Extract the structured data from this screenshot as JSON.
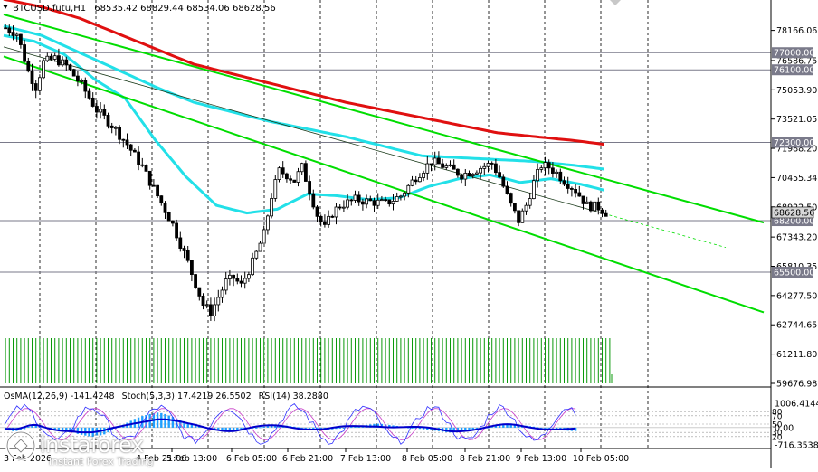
{
  "header": {
    "symbol": "BTCUSD.futu,H1",
    "ohlc": "68535.42 68829.44 68534.06 68628.56"
  },
  "osc_header": {
    "osma": "OsMA(12,26,9) -141.4248",
    "stoch": "Stoch(5,3,3) 17.4219 26.5502",
    "rsi": "RSI(14) 38.2880"
  },
  "colors": {
    "candle": "#000000",
    "ma_red": "#e01010",
    "ma_cyan": "#22e0e8",
    "channel": "#00dd00",
    "volume": "#0a9a0a",
    "level_line": "#7a7a8a",
    "osma_bar": "#1ea0ff",
    "macd_line": "#0000cc",
    "stoch_main": "#3030ff",
    "stoch_signal": "#c83cc8",
    "grid": "#2b2b2b"
  },
  "watermark": {
    "name": "instaforex",
    "tagline": "Instant Forex Trading"
  },
  "chart_data": {
    "type": "candlestick",
    "title": "BTCUSD.futu,H1",
    "timeframe": "H1",
    "ylim": [
      59676.98,
      79000
    ],
    "x_labels": [
      "5 Feb 13:00",
      "6 Feb 05:00",
      "6 Feb 21:00",
      "7 Feb 13:00",
      "8 Feb 05:00",
      "8 Feb 21:00",
      "9 Feb 13:00",
      "10 Feb 05:00"
    ],
    "x_labels_partial": [
      "3 Feb 2026",
      "4 Feb 21:00"
    ],
    "y_ticks": [
      "78166.06",
      "76586.75",
      "75053.90",
      "73521.05",
      "71988.20",
      "70455.34",
      "68922.50",
      "67343.20",
      "65810.35",
      "64277.50",
      "62744.65",
      "61211.80",
      "59676.98"
    ],
    "levels": [
      {
        "label": "77000.00",
        "value": 77000
      },
      {
        "label": "76100.00",
        "value": 76100
      },
      {
        "label": "72300.00",
        "value": 72300
      },
      {
        "label": "68200.00",
        "value": 68200
      },
      {
        "label": "65500.00",
        "value": 65500
      }
    ],
    "current_price": {
      "label": "68628.56",
      "value": 68628.56
    },
    "price_path": [
      [
        0,
        78300
      ],
      [
        3,
        78000
      ],
      [
        6,
        76000
      ],
      [
        8,
        75200
      ],
      [
        10,
        76500
      ],
      [
        13,
        76700
      ],
      [
        16,
        76300
      ],
      [
        20,
        75300
      ],
      [
        24,
        74000
      ],
      [
        28,
        73200
      ],
      [
        32,
        72200
      ],
      [
        36,
        71000
      ],
      [
        40,
        69500
      ],
      [
        44,
        68000
      ],
      [
        48,
        66000
      ],
      [
        52,
        63800
      ],
      [
        54,
        63400
      ],
      [
        56,
        64200
      ],
      [
        58,
        65000
      ],
      [
        60,
        65200
      ],
      [
        62,
        64800
      ],
      [
        65,
        66000
      ],
      [
        68,
        67500
      ],
      [
        70,
        69500
      ],
      [
        72,
        70800
      ],
      [
        74,
        70600
      ],
      [
        76,
        70300
      ],
      [
        78,
        71000
      ],
      [
        80,
        69800
      ],
      [
        82,
        68500
      ],
      [
        84,
        67800
      ],
      [
        86,
        68600
      ],
      [
        88,
        69000
      ],
      [
        92,
        69300
      ],
      [
        96,
        69200
      ],
      [
        100,
        69100
      ],
      [
        104,
        69500
      ],
      [
        108,
        70500
      ],
      [
        112,
        71300
      ],
      [
        116,
        71000
      ],
      [
        120,
        70600
      ],
      [
        124,
        70900
      ],
      [
        128,
        71200
      ],
      [
        130,
        70500
      ],
      [
        133,
        69000
      ],
      [
        135,
        68200
      ],
      [
        137,
        69000
      ],
      [
        139,
        70200
      ],
      [
        141,
        71100
      ],
      [
        143,
        71000
      ],
      [
        145,
        70700
      ],
      [
        147,
        70300
      ],
      [
        150,
        69800
      ],
      [
        153,
        69000
      ],
      [
        156,
        68900
      ],
      [
        158,
        68628.56
      ]
    ],
    "ma_red_path": [
      [
        0,
        79800
      ],
      [
        10,
        79400
      ],
      [
        20,
        78800
      ],
      [
        30,
        78000
      ],
      [
        40,
        77200
      ],
      [
        50,
        76400
      ],
      [
        60,
        75900
      ],
      [
        70,
        75400
      ],
      [
        80,
        74900
      ],
      [
        90,
        74400
      ],
      [
        100,
        74000
      ],
      [
        110,
        73600
      ],
      [
        120,
        73200
      ],
      [
        130,
        72800
      ],
      [
        140,
        72600
      ],
      [
        150,
        72400
      ],
      [
        158,
        72200
      ]
    ],
    "ma_cyan_slow_path": [
      [
        0,
        78400
      ],
      [
        10,
        77900
      ],
      [
        20,
        77000
      ],
      [
        30,
        76100
      ],
      [
        40,
        75200
      ],
      [
        50,
        74400
      ],
      [
        60,
        73900
      ],
      [
        70,
        73400
      ],
      [
        80,
        73000
      ],
      [
        90,
        72600
      ],
      [
        100,
        72100
      ],
      [
        110,
        71600
      ],
      [
        120,
        71500
      ],
      [
        130,
        71400
      ],
      [
        140,
        71300
      ],
      [
        150,
        71100
      ],
      [
        158,
        70900
      ]
    ],
    "ma_cyan_fast_path": [
      [
        0,
        77900
      ],
      [
        8,
        77600
      ],
      [
        16,
        76900
      ],
      [
        24,
        75600
      ],
      [
        32,
        74600
      ],
      [
        40,
        72400
      ],
      [
        48,
        70500
      ],
      [
        56,
        69000
      ],
      [
        64,
        68600
      ],
      [
        72,
        68800
      ],
      [
        80,
        69600
      ],
      [
        88,
        69500
      ],
      [
        96,
        69300
      ],
      [
        104,
        69400
      ],
      [
        112,
        70000
      ],
      [
        120,
        70400
      ],
      [
        128,
        70600
      ],
      [
        136,
        70200
      ],
      [
        144,
        70400
      ],
      [
        152,
        70100
      ],
      [
        158,
        69800
      ]
    ],
    "channel_lines": [
      {
        "from": [
          0,
          79000
        ],
        "to": [
          200,
          68100
        ]
      },
      {
        "from": [
          0,
          76800
        ],
        "to": [
          200,
          63400
        ]
      }
    ],
    "regression_line": {
      "from": [
        0,
        77300
      ],
      "to": [
        190,
        66800
      ]
    },
    "volume_bars": 160,
    "osc_ylim": [
      -716.3538,
      1006.4144
    ],
    "osc_ticks": [
      "1006.4144",
      "0.00",
      "-716.3538"
    ],
    "osc_level_labels": [
      "80",
      "70",
      "50",
      "30",
      "20"
    ],
    "osma_values": [
      -80,
      -120,
      -150,
      -180,
      -120,
      -60,
      40,
      90,
      120,
      80,
      30,
      -20,
      -60,
      -90,
      -110,
      -130,
      -140,
      -160,
      -200,
      -260,
      -300,
      -330,
      -360,
      -380,
      -360,
      -320,
      -280,
      -200,
      -120,
      -40,
      40,
      120,
      200,
      280,
      360,
      420,
      480,
      520,
      560,
      600,
      620,
      600,
      560,
      500,
      440,
      380,
      320,
      260,
      200,
      160,
      120,
      80,
      40,
      0,
      -30,
      -60,
      -90,
      -120,
      -140,
      -160,
      -170,
      -150,
      -120,
      -90,
      -60,
      -30,
      0,
      20,
      40,
      60,
      80,
      90,
      100,
      90,
      80,
      60,
      40,
      20,
      0,
      -20,
      -40,
      -60,
      -80,
      -90,
      -100,
      -90,
      -70,
      -50,
      -30,
      -10,
      10,
      30,
      50,
      70,
      90,
      110,
      130,
      150,
      160,
      150,
      130,
      110,
      90,
      70,
      50,
      30,
      10,
      -10,
      -30,
      -50,
      -70,
      -90,
      -110,
      -130,
      -150,
      -170,
      -190,
      -200,
      -190,
      -170,
      -150,
      -130,
      -110,
      -90,
      -70,
      -50,
      -20,
      10,
      40,
      70,
      100,
      120,
      140,
      150,
      140,
      120,
      100,
      80,
      60,
      40,
      20,
      0,
      -20,
      -40,
      -60,
      -80,
      -100,
      -120,
      -130,
      -140,
      -141
    ]
  }
}
